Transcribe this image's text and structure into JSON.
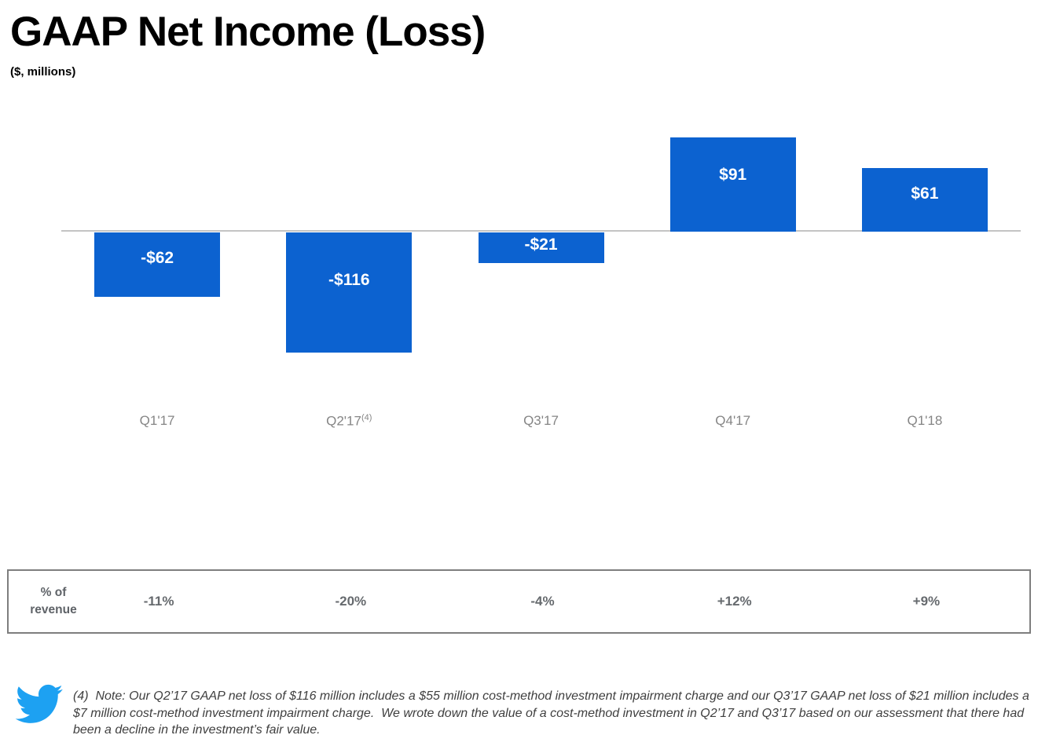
{
  "header": {
    "title": "GAAP Net Income (Loss)",
    "subtitle": "($, millions)"
  },
  "chart_data": {
    "type": "bar",
    "title": "GAAP Net Income (Loss)",
    "units": "$, millions",
    "xlabel": "",
    "ylabel": "",
    "grid": false,
    "legend": false,
    "ylim": [
      -130,
      105
    ],
    "categories": [
      "Q1'17",
      "Q2'17",
      "Q3'17",
      "Q4'17",
      "Q1'18"
    ],
    "category_superscripts": [
      "",
      "(4)",
      "",
      "",
      ""
    ],
    "values": [
      -62,
      -116,
      -21,
      91,
      61
    ],
    "bar_labels": [
      "-$62",
      "-$116",
      "-$21",
      "$91",
      "$61"
    ],
    "bar_color": "#0c62d0",
    "bar_label_color": "#ffffff",
    "axis_line_color": "#c4c4c4",
    "axis_tick_color": "#858585",
    "revenue_row": {
      "header_label": "% of revenue",
      "values": [
        "-11%",
        "-20%",
        "-4%",
        "+12%",
        "+9%"
      ]
    }
  },
  "footnote": {
    "icon": "twitter-bird-icon",
    "icon_color": "#1da1f2",
    "text": "(4)  Note: Our Q2’17 GAAP net loss of $116 million includes a $55 million cost-method investment impairment charge and our Q3’17 GAAP net loss of $21 million includes a $7 million cost-method investment impairment charge.  We wrote down the value of a cost-method investment in Q2’17 and Q3’17 based on our assessment that there had been a decline in the investment’s fair value."
  }
}
